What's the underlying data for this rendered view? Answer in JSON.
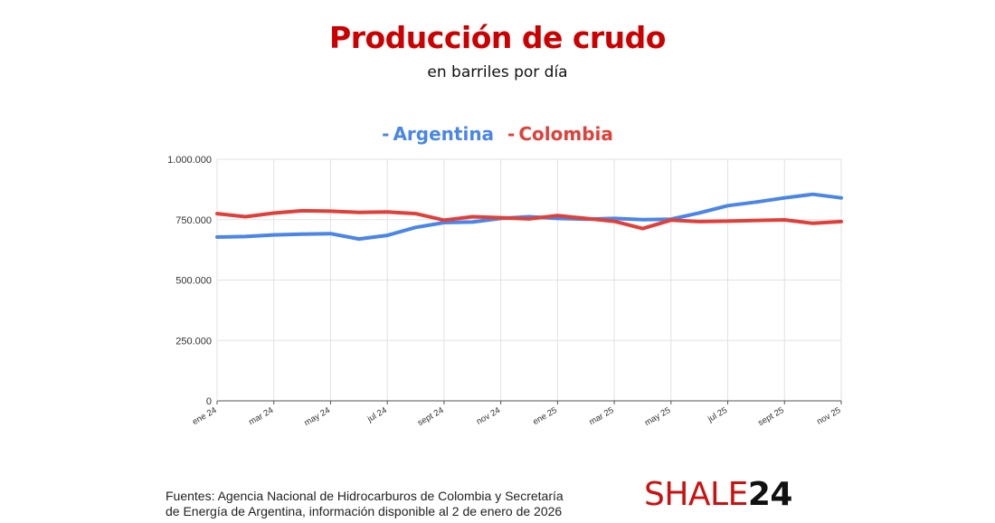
{
  "header": {
    "title": "Producción de crudo",
    "subtitle": "en barriles por día"
  },
  "legend": {
    "argentina": "Argentina",
    "colombia": "Colombia",
    "dash": "-"
  },
  "footer": {
    "source_line1": "Fuentes: Agencia Nacional de Hidrocarburos de Colombia y Secretaría",
    "source_line2": "de Energía de Argentina, información disponible al 2 de enero de 2026",
    "brand_prefix": "SHALE",
    "brand_suffix": "24"
  },
  "colors": {
    "title": "#cc0000",
    "argentina": "#4a86e8",
    "colombia": "#e0403a",
    "grid": "#e2e2e2",
    "axis": "#555555"
  },
  "chart_data": {
    "type": "line",
    "x": [
      "ene 24",
      "feb 24",
      "mar 24",
      "abr 24",
      "may 24",
      "jun 24",
      "jul 24",
      "ago 24",
      "sept 24",
      "oct 24",
      "nov 24",
      "dic 24",
      "ene 25",
      "feb 25",
      "mar 25",
      "abr 25",
      "may 25",
      "jun 25",
      "jul 25",
      "ago 25",
      "sept 25",
      "oct 25",
      "nov 25"
    ],
    "tick_labels": [
      "ene 24",
      "mar 24",
      "may 24",
      "jul 24",
      "sept 24",
      "nov 24",
      "ene 25",
      "mar 25",
      "may 25",
      "jul 25",
      "sept 25",
      "nov 25"
    ],
    "y_ticks": [
      0,
      250000,
      500000,
      750000,
      1000000
    ],
    "y_tick_labels": [
      "0",
      "250.000",
      "500.000",
      "750.000",
      "1.000.000"
    ],
    "ylim": [
      0,
      1000000
    ],
    "grid": true,
    "legend_position": "top-center",
    "series": [
      {
        "name": "Argentina",
        "values": [
          678000,
          680000,
          687000,
          690000,
          692000,
          670000,
          685000,
          718000,
          738000,
          740000,
          755000,
          762000,
          755000,
          752000,
          755000,
          750000,
          752000,
          778000,
          808000,
          823000,
          840000,
          855000,
          840000
        ]
      },
      {
        "name": "Colombia",
        "values": [
          775000,
          762000,
          777000,
          787000,
          785000,
          780000,
          782000,
          775000,
          748000,
          762000,
          758000,
          753000,
          767000,
          755000,
          743000,
          713000,
          748000,
          742000,
          744000,
          747000,
          749000,
          735000,
          742000
        ]
      }
    ]
  }
}
